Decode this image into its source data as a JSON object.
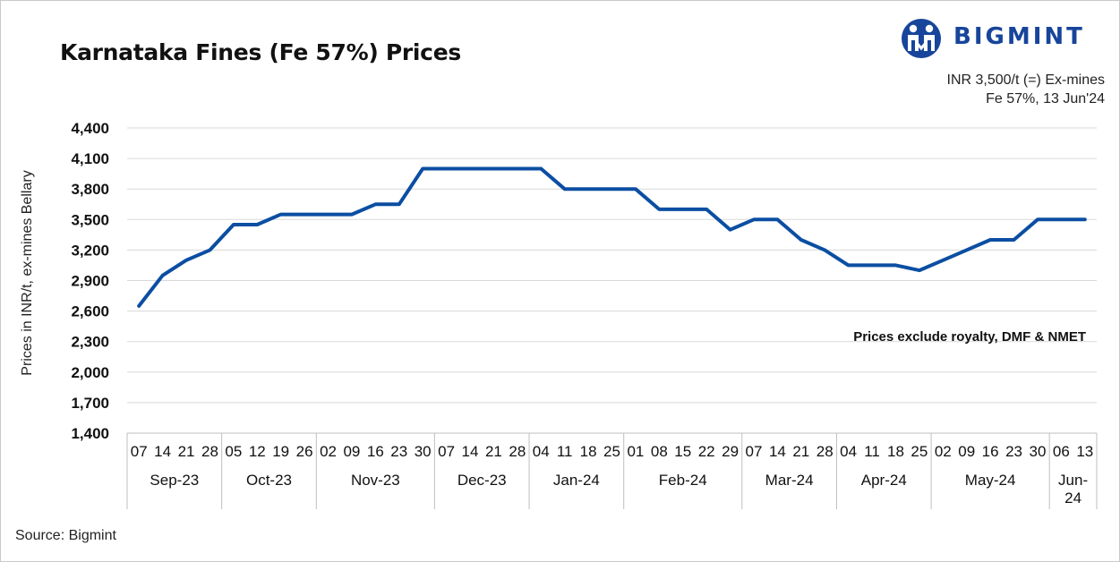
{
  "header": {
    "title": "Karnataka Fines (Fe 57%) Prices",
    "logo_text": "BIGMINT",
    "info_line1": "INR 3,500/t (=) Ex-mines",
    "info_line2": "Fe 57%, 13 Jun'24"
  },
  "note": "Prices exclude royalty, DMF & NMET",
  "source": "Source: Bigmint",
  "colors": {
    "line": "#0b4ea2",
    "brand": "#17459b",
    "grid": "#d9d9d9"
  },
  "chart_data": {
    "type": "line",
    "ylabel": "Prices in INR/t, ex-mines Bellary",
    "ylim": [
      1400,
      4400
    ],
    "yticks": [
      1400,
      1700,
      2000,
      2300,
      2600,
      2900,
      3200,
      3500,
      3800,
      4100,
      4400
    ],
    "ytick_labels": [
      "1,400",
      "1,700",
      "2,000",
      "2,300",
      "2,600",
      "2,900",
      "3,200",
      "3,500",
      "3,800",
      "4,100",
      "4,400"
    ],
    "grid": true,
    "x_days": [
      "07",
      "14",
      "21",
      "28",
      "05",
      "12",
      "19",
      "26",
      "02",
      "09",
      "16",
      "23",
      "30",
      "07",
      "14",
      "21",
      "28",
      "04",
      "11",
      "18",
      "25",
      "01",
      "08",
      "15",
      "22",
      "29",
      "07",
      "14",
      "21",
      "28",
      "04",
      "11",
      "18",
      "25",
      "02",
      "09",
      "16",
      "23",
      "30",
      "06",
      "13"
    ],
    "months": [
      {
        "label": "Sep-23",
        "count": 4
      },
      {
        "label": "Oct-23",
        "count": 4
      },
      {
        "label": "Nov-23",
        "count": 5
      },
      {
        "label": "Dec-23",
        "count": 4
      },
      {
        "label": "Jan-24",
        "count": 4
      },
      {
        "label": "Feb-24",
        "count": 5
      },
      {
        "label": "Mar-24",
        "count": 4
      },
      {
        "label": "Apr-24",
        "count": 4
      },
      {
        "label": "May-24",
        "count": 5
      },
      {
        "label": "Jun-\n24",
        "count": 2
      }
    ],
    "values": [
      2650,
      2950,
      3100,
      3200,
      3450,
      3450,
      3550,
      3550,
      3550,
      3550,
      3650,
      3650,
      4000,
      4000,
      4000,
      4000,
      4000,
      4000,
      3800,
      3800,
      3800,
      3800,
      3600,
      3600,
      3600,
      3400,
      3500,
      3500,
      3300,
      3200,
      3050,
      3050,
      3050,
      3000,
      3100,
      3200,
      3300,
      3300,
      3500,
      3500,
      3500
    ]
  }
}
